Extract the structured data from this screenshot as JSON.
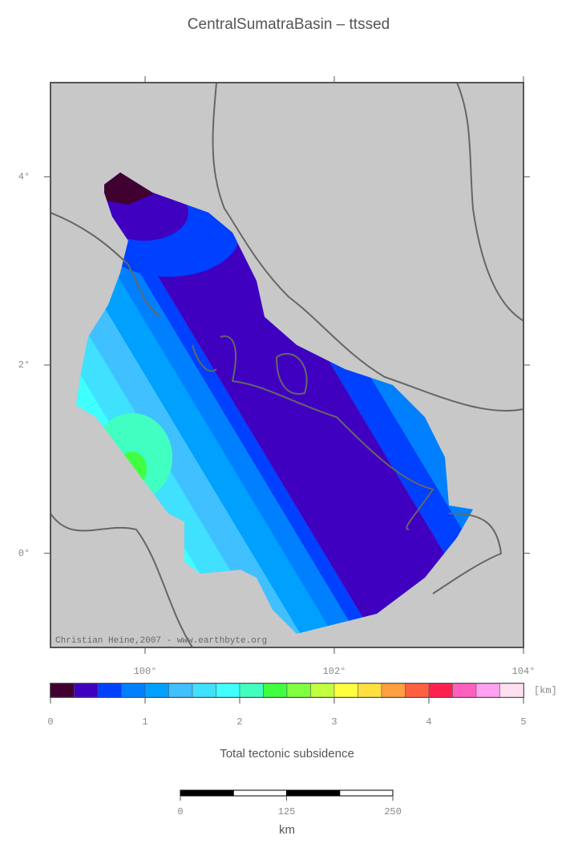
{
  "title": "CentralSumatraBasin – ttssed",
  "map": {
    "xlim": [
      99,
      104
    ],
    "ylim": [
      -1,
      5
    ],
    "xticks": [
      {
        "value": 100,
        "label": "100°"
      },
      {
        "value": 102,
        "label": "102°"
      },
      {
        "value": 104,
        "label": "104°"
      }
    ],
    "yticks": [
      {
        "value": 0,
        "label": "0°"
      },
      {
        "value": 2,
        "label": "2°"
      },
      {
        "value": 4,
        "label": "4°"
      }
    ],
    "credit": "Christian Heine,2007 - www.earthbyte.org"
  },
  "colorbar": {
    "lim": [
      0,
      5
    ],
    "ticks": [
      0,
      1,
      2,
      3,
      4,
      5
    ],
    "unit": "[km]",
    "label": "Total tectonic subsidence",
    "colors": [
      "#400030",
      "#4000c0",
      "#0040ff",
      "#0080ff",
      "#00a0ff",
      "#40c0ff",
      "#40e0ff",
      "#40ffff",
      "#40ffc0",
      "#40ff40",
      "#80ff40",
      "#c0ff40",
      "#ffff40",
      "#ffe040",
      "#ffa040",
      "#ff6040",
      "#ff2050",
      "#ff60c0",
      "#ffa0f0",
      "#ffe0f0"
    ]
  },
  "scalebar": {
    "lim": [
      0,
      250
    ],
    "ticks": [
      0,
      125,
      250
    ],
    "unit": "km"
  }
}
